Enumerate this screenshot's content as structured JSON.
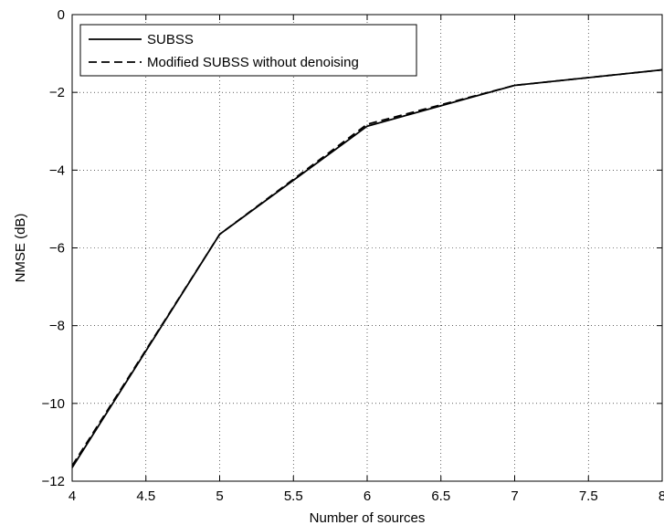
{
  "chart_data": {
    "type": "line",
    "title": "",
    "xlabel": "Number of sources",
    "ylabel": "NMSE (dB)",
    "xlim": [
      4,
      8
    ],
    "ylim": [
      -12,
      0
    ],
    "xticks": [
      4,
      4.5,
      5,
      5.5,
      6,
      6.5,
      7,
      7.5,
      8
    ],
    "yticks": [
      -12,
      -10,
      -8,
      -6,
      -4,
      -2,
      0
    ],
    "xtick_labels": [
      "4",
      "4.5",
      "5",
      "5.5",
      "6",
      "6.5",
      "7",
      "7.5",
      "8"
    ],
    "ytick_labels": [
      "−12",
      "−10",
      "−8",
      "−6",
      "−4",
      "−2",
      "0"
    ],
    "grid": true,
    "legend_position": "top-left",
    "series": [
      {
        "name": "SUBSS",
        "style": "solid",
        "color": "#000000",
        "x": [
          4,
          5,
          6,
          7,
          8
        ],
        "y": [
          -11.65,
          -5.65,
          -2.87,
          -1.82,
          -1.42
        ]
      },
      {
        "name": "Modified SUBSS without denoising",
        "style": "dashed",
        "color": "#000000",
        "x": [
          4,
          5,
          6,
          7,
          8
        ],
        "y": [
          -11.6,
          -5.65,
          -2.82,
          -1.82,
          -1.42
        ]
      }
    ]
  }
}
